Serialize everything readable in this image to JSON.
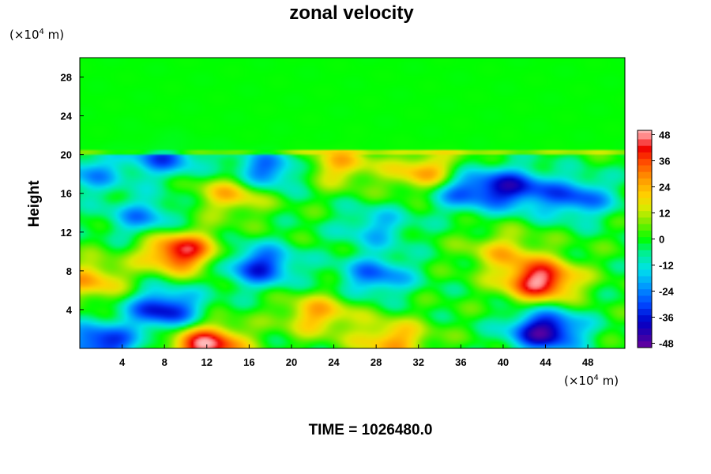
{
  "chart_data": {
    "type": "heatmap",
    "title": "zonal velocity",
    "ylabel": "Height",
    "xlabel": "",
    "x_unit_prefix": "(×10",
    "x_unit_exp": "4",
    "x_unit_suffix": " m)",
    "y_unit_prefix": "(×10",
    "y_unit_exp": "4",
    "y_unit_suffix": " m)",
    "xlim": [
      0,
      51.5
    ],
    "ylim": [
      0,
      30
    ],
    "x_ticks": [
      4,
      8,
      12,
      16,
      20,
      24,
      28,
      32,
      36,
      40,
      44,
      48
    ],
    "y_ticks": [
      4,
      8,
      12,
      16,
      20,
      24,
      28
    ],
    "colorbar": {
      "min": -50,
      "max": 50,
      "ticks": [
        48,
        36,
        24,
        12,
        0,
        -12,
        -24,
        -36,
        -48
      ]
    },
    "features": [
      {
        "x": 12,
        "y": 0.3,
        "value": 48
      },
      {
        "x": 43.5,
        "y": 7.0,
        "value": 48
      },
      {
        "x": 9.5,
        "y": 10.0,
        "value": 44
      },
      {
        "x": 1.0,
        "y": 7.0,
        "value": 24
      },
      {
        "x": 22.5,
        "y": 3.5,
        "value": 24
      },
      {
        "x": 29.5,
        "y": 0.8,
        "value": 26
      },
      {
        "x": 14.5,
        "y": 16.0,
        "value": 24
      },
      {
        "x": 33.0,
        "y": 18.0,
        "value": 30
      },
      {
        "x": 24.5,
        "y": 19.0,
        "value": 22
      },
      {
        "x": 40.0,
        "y": 10.0,
        "value": 18
      },
      {
        "x": 8.0,
        "y": 4.0,
        "value": -38
      },
      {
        "x": 17.0,
        "y": 8.5,
        "value": -34
      },
      {
        "x": 28.0,
        "y": 7.5,
        "value": -26
      },
      {
        "x": 44.0,
        "y": 1.8,
        "value": -46
      },
      {
        "x": 2.0,
        "y": 0.5,
        "value": -36
      },
      {
        "x": 36.0,
        "y": 16.5,
        "value": -30
      },
      {
        "x": 17.5,
        "y": 18.3,
        "value": -30
      },
      {
        "x": 41.0,
        "y": 16.5,
        "value": -34
      },
      {
        "x": 47.0,
        "y": 15.5,
        "value": -28
      },
      {
        "x": 6.0,
        "y": 13.5,
        "value": -22
      },
      {
        "x": 28.0,
        "y": 12.5,
        "value": -18
      },
      {
        "x": 8.0,
        "y": 19.8,
        "value": -28
      },
      {
        "x": 1.0,
        "y": 18.0,
        "value": -20
      }
    ]
  },
  "time_label": "TIME = 1026480.0"
}
